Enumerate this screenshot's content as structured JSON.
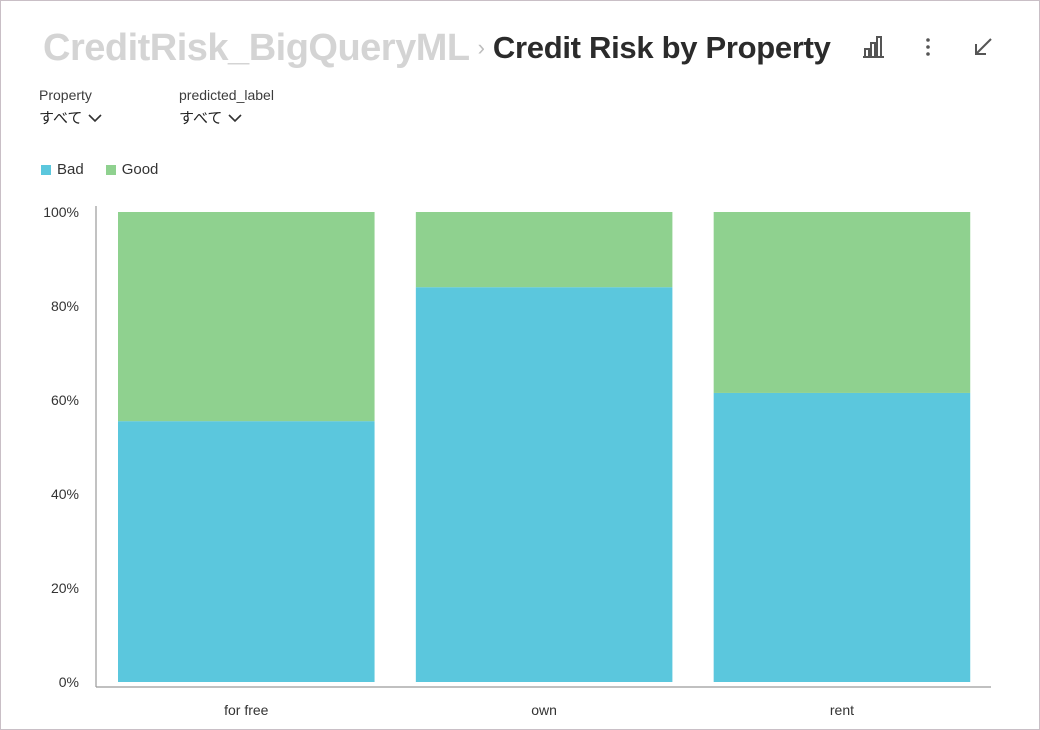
{
  "header": {
    "breadcrumb_parent": "CreditRisk_BigQueryML",
    "separator": "›",
    "title": "Credit Risk by Property"
  },
  "toolbar": {
    "icons": [
      "bar-chart-icon",
      "more-vert-icon",
      "collapse-icon"
    ]
  },
  "filters": [
    {
      "label": "Property",
      "value": "すべて"
    },
    {
      "label": "predicted_label",
      "value": "すべて"
    }
  ],
  "colors": {
    "bad": "#5bc7dd",
    "good": "#8fd18f",
    "axis": "#9a9a9a"
  },
  "chart_data": {
    "type": "bar",
    "stacked": true,
    "normalized": true,
    "title": "Credit Risk by Property",
    "categories": [
      "for free",
      "own",
      "rent"
    ],
    "series": [
      {
        "name": "Bad",
        "values": [
          55.5,
          84,
          61.5
        ]
      },
      {
        "name": "Good",
        "values": [
          44.5,
          16,
          38.5
        ]
      }
    ],
    "ylim": [
      0,
      100
    ],
    "yticks": [
      "0%",
      "20%",
      "40%",
      "60%",
      "80%",
      "100%"
    ],
    "legend_position": "top-left",
    "grid": false
  }
}
